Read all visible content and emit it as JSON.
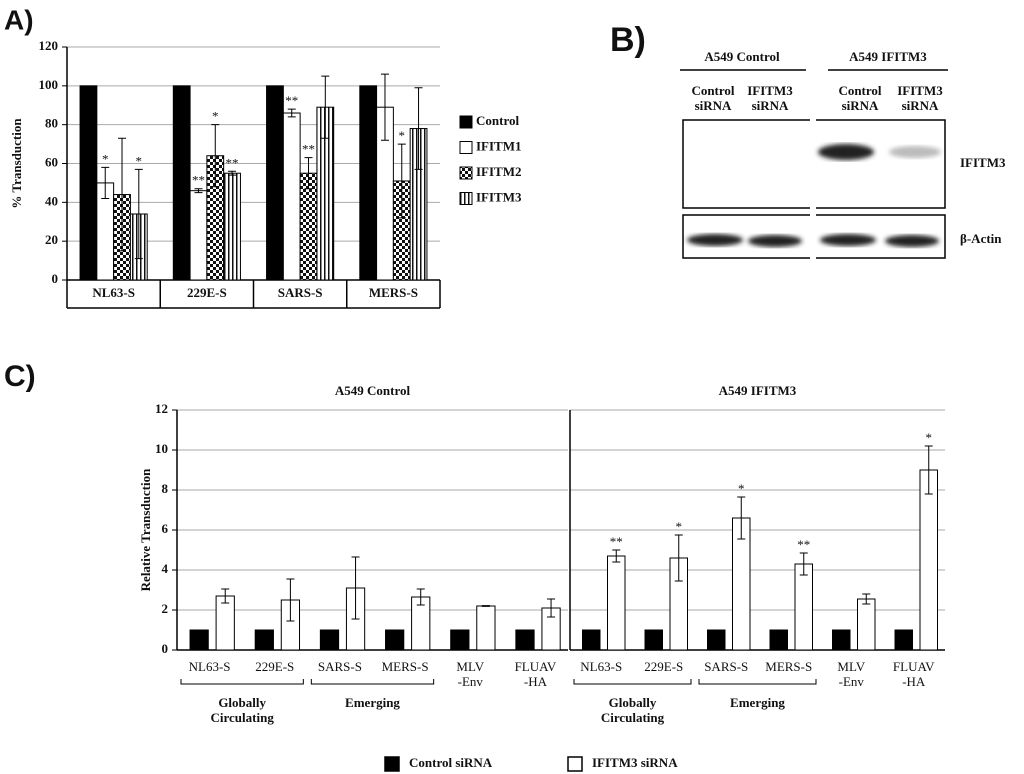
{
  "panel_labels": [
    "A)",
    "B)",
    "C)"
  ],
  "blot": {
    "groups": [
      "A549 Control",
      "A549 IFITM3"
    ],
    "lanes": [
      "Control\nsiRNA",
      "IFITM3\nsiRNA",
      "Control\nsiRNA",
      "IFITM3\nsiRNA"
    ],
    "rows": [
      "IFITM3",
      "β-Actin"
    ]
  },
  "chart_data": [
    {
      "type": "bar",
      "ylabel": "% Transduction",
      "categories": [
        "NL63-S",
        "229E-S",
        "SARS-S",
        "MERS-S"
      ],
      "series": [
        {
          "name": "Control",
          "color": "#000000",
          "pattern": "solid",
          "values": [
            100,
            100,
            100,
            100
          ]
        },
        {
          "name": "IFITM1",
          "color": "#ffffff",
          "pattern": "solid",
          "values": [
            50,
            46,
            86,
            89
          ],
          "errors": [
            8,
            1,
            2,
            17
          ],
          "significance": [
            "*",
            "**",
            "**",
            null
          ]
        },
        {
          "name": "IFITM2",
          "color": "#000000",
          "pattern": "checker",
          "values": [
            44,
            64,
            55,
            51
          ],
          "errors": [
            29,
            16,
            8,
            19
          ],
          "significance": [
            null,
            "*",
            "**",
            "*"
          ]
        },
        {
          "name": "IFITM3",
          "color": "#000000",
          "pattern": "stripes",
          "values": [
            34,
            55,
            89,
            78
          ],
          "errors": [
            23,
            1,
            16,
            21
          ],
          "significance": [
            "*",
            "**",
            null,
            null
          ]
        }
      ],
      "ylim": [
        0,
        120
      ],
      "yticks": [
        0,
        20,
        40,
        60,
        80,
        100,
        120
      ],
      "grid": true,
      "legend": "right"
    },
    {
      "type": "bar",
      "title": "A549 Control",
      "ylabel": "Relative Transduction",
      "categories": [
        "NL63-S",
        "229E-S",
        "SARS-S",
        "MERS-S",
        "MLV\n-Env",
        "FLUAV\n-HA"
      ],
      "groups": [
        {
          "label": "Globally\nCirculating",
          "from": 0,
          "to": 1
        },
        {
          "label": "Emerging",
          "from": 2,
          "to": 3
        }
      ],
      "series": [
        {
          "color": "#000000",
          "pattern": "solid",
          "values": [
            1,
            1,
            1,
            1,
            1,
            1
          ]
        },
        {
          "color": "#ffffff",
          "pattern": "solid",
          "values": [
            2.7,
            2.5,
            3.1,
            2.65,
            2.2,
            2.1
          ],
          "errors": [
            0.35,
            1.05,
            1.55,
            0.4,
            0.02,
            0.45
          ]
        }
      ],
      "ylim": [
        0,
        12
      ],
      "yticks": [
        0,
        2,
        4,
        6,
        8,
        10,
        12
      ],
      "grid": true
    },
    {
      "type": "bar",
      "title": "A549 IFITM3",
      "categories": [
        "NL63-S",
        "229E-S",
        "SARS-S",
        "MERS-S",
        "MLV\n-Env",
        "FLUAV\n-HA"
      ],
      "groups": [
        {
          "label": "Globally\nCirculating",
          "from": 0,
          "to": 1
        },
        {
          "label": "Emerging",
          "from": 2,
          "to": 3
        }
      ],
      "series": [
        {
          "name": "Control siRNA",
          "color": "#000000",
          "pattern": "solid",
          "values": [
            1,
            1,
            1,
            1,
            1,
            1
          ]
        },
        {
          "name": "IFITM3 siRNA",
          "color": "#ffffff",
          "pattern": "solid",
          "values": [
            4.7,
            4.6,
            6.6,
            4.3,
            2.55,
            9.0
          ],
          "errors": [
            0.3,
            1.15,
            1.05,
            0.55,
            0.25,
            1.2
          ],
          "significance": [
            "**",
            "*",
            "*",
            "**",
            null,
            "*"
          ]
        }
      ],
      "ylim": [
        0,
        12
      ],
      "yticks": [
        0,
        2,
        4,
        6,
        8,
        10,
        12
      ],
      "grid": true,
      "tick_labels": false,
      "legend": "bottom"
    }
  ]
}
